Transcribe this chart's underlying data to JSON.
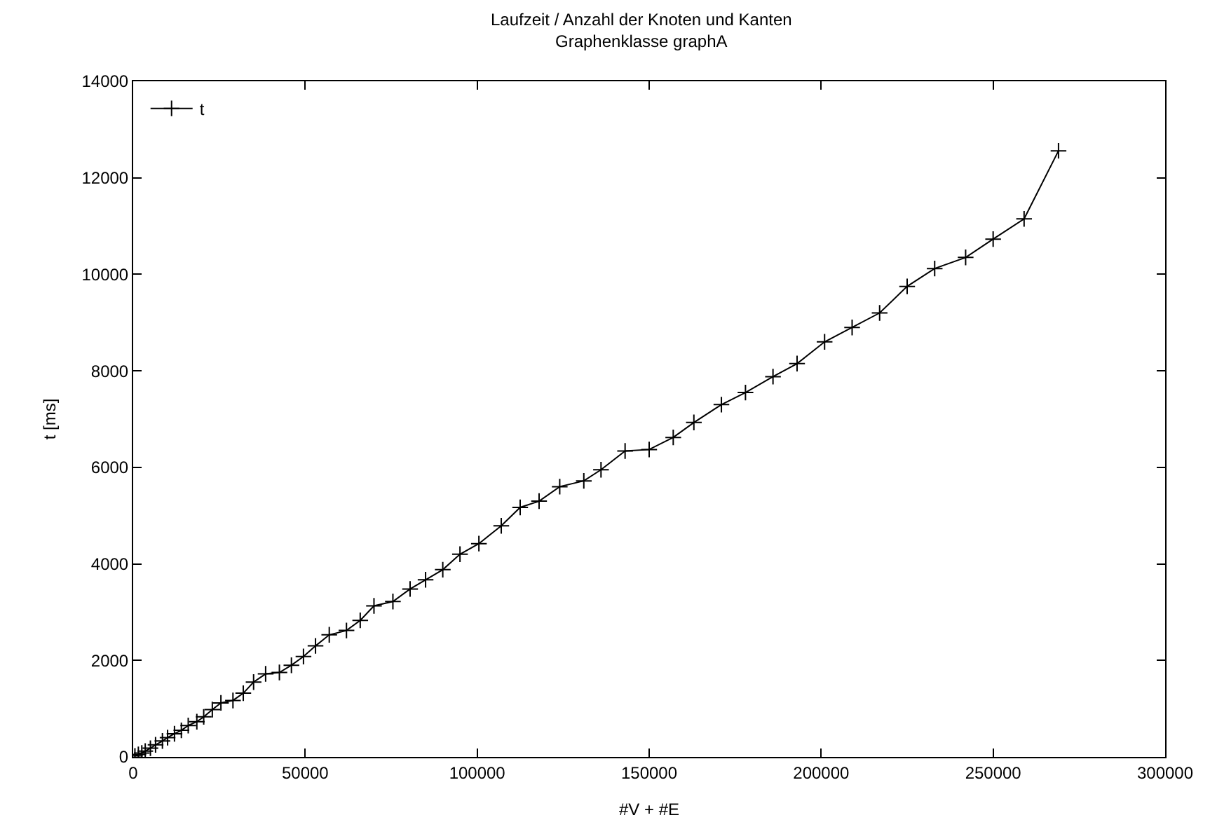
{
  "chart_data": {
    "type": "line",
    "title": "Laufzeit / Anzahl der Knoten und Kanten",
    "subtitle": "Graphenklasse graphA",
    "xlabel": "#V + #E",
    "ylabel": "t [ms]",
    "x": [
      500,
      1500,
      2500,
      3500,
      5000,
      6500,
      8500,
      10000,
      12000,
      14000,
      16000,
      18500,
      20500,
      23000,
      25500,
      29000,
      32000,
      35000,
      38500,
      42500,
      46000,
      49500,
      53000,
      57000,
      62000,
      66000,
      70000,
      75500,
      80500,
      85000,
      90000,
      95000,
      100500,
      107000,
      112500,
      118000,
      124000,
      131000,
      136000,
      143000,
      150000,
      157000,
      163000,
      171000,
      178000,
      186000,
      193000,
      201000,
      209000,
      217000,
      225000,
      233000,
      242000,
      250000,
      259000,
      269000
    ],
    "series": [
      {
        "name": "t",
        "color": "#000000",
        "values": [
          20,
          50,
          80,
          120,
          180,
          250,
          330,
          400,
          480,
          550,
          650,
          730,
          830,
          980,
          1120,
          1170,
          1320,
          1550,
          1720,
          1750,
          1900,
          2080,
          2300,
          2530,
          2620,
          2830,
          3130,
          3220,
          3480,
          3670,
          3880,
          4200,
          4420,
          4790,
          5170,
          5300,
          5600,
          5720,
          5950,
          6340,
          6370,
          6620,
          6930,
          7300,
          7550,
          7880,
          8150,
          8600,
          8900,
          9200,
          9750,
          10120,
          10350,
          10730,
          11150,
          12560
        ]
      }
    ],
    "xlim": [
      0,
      300000
    ],
    "xticks": [
      0,
      50000,
      100000,
      150000,
      200000,
      250000,
      300000
    ],
    "ylim": [
      0,
      14000
    ],
    "yticks": [
      0,
      2000,
      4000,
      6000,
      8000,
      10000,
      12000,
      14000
    ],
    "legend": "top left",
    "marker": "cross",
    "line_style": "solid"
  }
}
